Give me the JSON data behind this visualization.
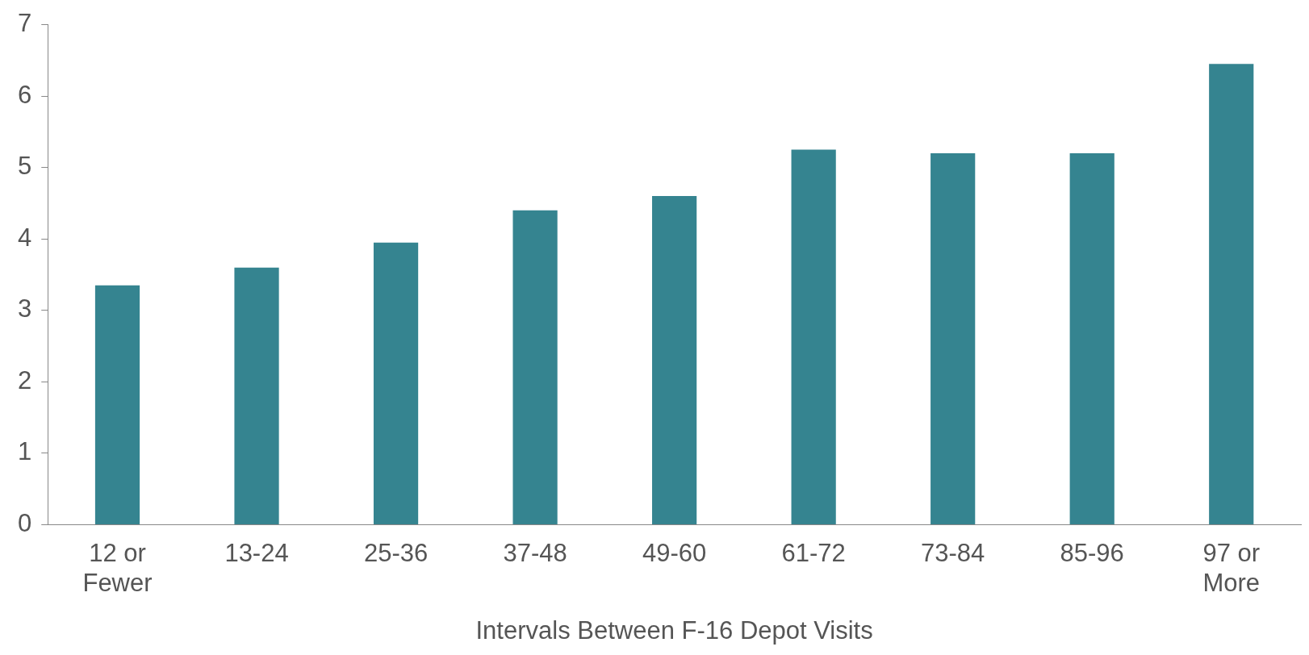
{
  "chart_data": {
    "type": "bar",
    "xlabel": "Intervals Between F-16 Depot Visits",
    "categories": [
      "12 or\nFewer",
      "13-24",
      "25-36",
      "37-48",
      "49-60",
      "61-72",
      "73-84",
      "85-96",
      "97 or\nMore"
    ],
    "values": [
      3.35,
      3.6,
      3.95,
      4.4,
      4.6,
      5.25,
      5.2,
      5.2,
      6.45
    ],
    "color": "#358490",
    "ylim": [
      0,
      7
    ],
    "yticks": [
      0,
      1,
      2,
      3,
      4,
      5,
      6,
      7
    ],
    "grid": false,
    "legend": false
  }
}
